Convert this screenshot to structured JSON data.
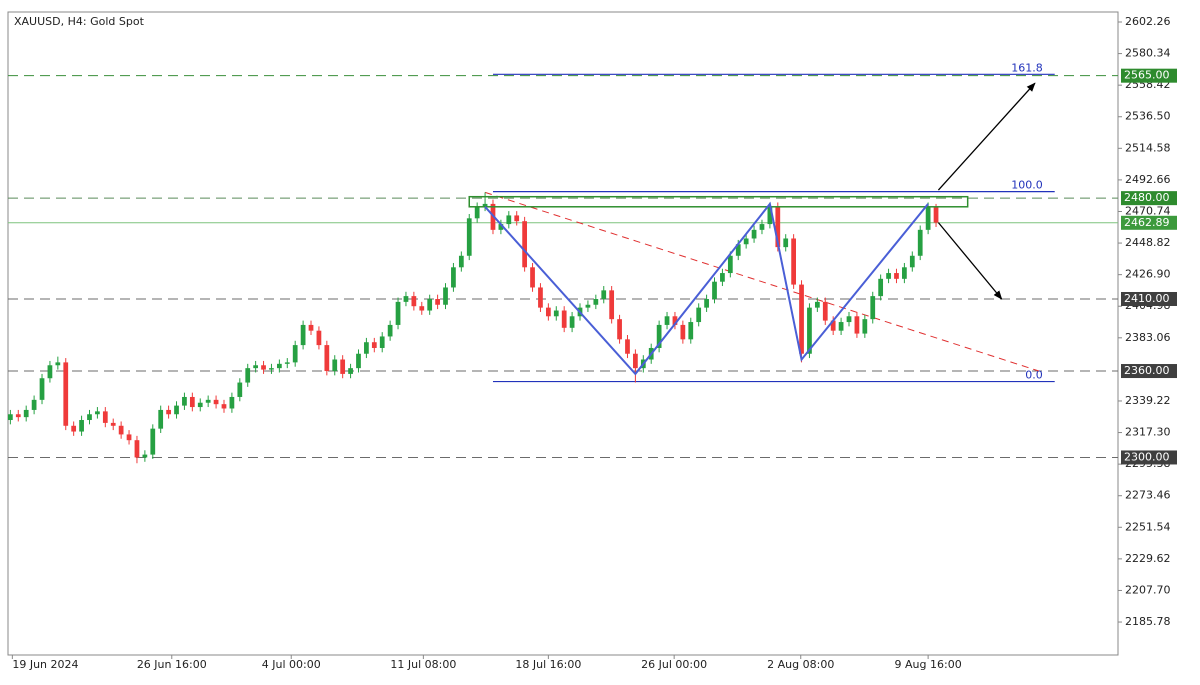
{
  "chart_data": {
    "type": "candlestick",
    "title": "XAUUSD, H4:  Gold Spot",
    "up_color": "#26a042",
    "down_color": "#ef3a3a",
    "xlim": [
      -0.3,
      140
    ],
    "ylim": [
      2162.9,
      2609.2
    ],
    "xticks": [
      {
        "value": 0.25,
        "label": "19 Jun 2024"
      },
      {
        "value": 20.4,
        "label": "26 Jun 16:00"
      },
      {
        "value": 35.5,
        "label": "4 Jul 00:00"
      },
      {
        "value": 52.2,
        "label": "11 Jul 08:00"
      },
      {
        "value": 68,
        "label": "18 Jul 16:00"
      },
      {
        "value": 83.9,
        "label": "26 Jul 00:00"
      },
      {
        "value": 99.9,
        "label": "2 Aug 08:00"
      },
      {
        "value": 116,
        "label": "9 Aug 16:00"
      }
    ],
    "yticks": [
      2602.26,
      2580.34,
      2558.42,
      {
        "value": 2536.5,
        "label": "2536.50"
      },
      2514.58,
      2492.66,
      2470.74,
      2448.82,
      {
        "value": 2426.9,
        "label": "2426.90"
      },
      2404.98,
      2383.06,
      2339.22,
      {
        "value": 2317.3,
        "label": "2317.30"
      },
      2295.38,
      2273.46,
      2251.54,
      2229.62,
      {
        "value": 2207.7,
        "label": "2207.70"
      },
      2185.78
    ],
    "open": [
      2326,
      2330,
      2328,
      2333,
      2340,
      2355,
      2364,
      2366,
      2322,
      2318,
      2326,
      2330,
      2332,
      2324,
      2322,
      2316,
      2312,
      2300,
      2302,
      2320,
      2333,
      2330,
      2336,
      2342,
      2335,
      2338,
      2340,
      2337,
      2334,
      2342,
      2352,
      2362,
      2364,
      2361,
      2362,
      2365,
      2366,
      2378,
      2392,
      2388,
      2378,
      2360,
      2368,
      2358,
      2362,
      2372,
      2380,
      2376,
      2384,
      2392,
      2408,
      2412,
      2405,
      2402,
      2410,
      2406,
      2418,
      2432,
      2440,
      2466,
      2474,
      2476,
      2458,
      2462,
      2468,
      2464,
      2432,
      2418,
      2404,
      2398,
      2402,
      2390,
      2398,
      2404,
      2406,
      2410,
      2416,
      2396,
      2382,
      2372,
      2362,
      2368,
      2376,
      2392,
      2398,
      2392,
      2382,
      2394,
      2404,
      2410,
      2422,
      2428,
      2440,
      2448,
      2452,
      2458,
      2462,
      2474,
      2446,
      2452,
      2420,
      2372,
      2404,
      2408,
      2395,
      2388,
      2394,
      2398,
      2386,
      2396,
      2412,
      2424,
      2428,
      2424,
      2432,
      2440,
      2458,
      2474
    ],
    "high": [
      2333,
      2333,
      2336,
      2343,
      2358,
      2367,
      2370,
      2369,
      2325,
      2329,
      2333,
      2335,
      2335,
      2327,
      2325,
      2319,
      2315,
      2305,
      2323,
      2336,
      2336,
      2339,
      2345,
      2345,
      2341,
      2343,
      2343,
      2340,
      2345,
      2355,
      2365,
      2367,
      2367,
      2365,
      2368,
      2369,
      2381,
      2395,
      2395,
      2391,
      2381,
      2371,
      2371,
      2365,
      2375,
      2383,
      2383,
      2387,
      2395,
      2411,
      2415,
      2415,
      2408,
      2413,
      2413,
      2421,
      2435,
      2443,
      2469,
      2477,
      2484,
      2479,
      2465,
      2471,
      2471,
      2467,
      2435,
      2421,
      2407,
      2405,
      2405,
      2401,
      2407,
      2409,
      2413,
      2419,
      2419,
      2399,
      2385,
      2375,
      2371,
      2379,
      2395,
      2401,
      2401,
      2395,
      2397,
      2407,
      2413,
      2425,
      2431,
      2443,
      2451,
      2455,
      2461,
      2465,
      2477,
      2477,
      2455,
      2455,
      2423,
      2407,
      2411,
      2411,
      2398,
      2397,
      2401,
      2401,
      2399,
      2415,
      2427,
      2431,
      2431,
      2435,
      2443,
      2461,
      2477,
      2476
    ],
    "low": [
      2323,
      2325,
      2325,
      2330,
      2337,
      2352,
      2361,
      2319,
      2315,
      2315,
      2323,
      2327,
      2321,
      2319,
      2313,
      2309,
      2296,
      2297,
      2299,
      2317,
      2327,
      2327,
      2333,
      2332,
      2332,
      2335,
      2334,
      2331,
      2331,
      2339,
      2349,
      2359,
      2358,
      2358,
      2359,
      2362,
      2363,
      2375,
      2385,
      2375,
      2357,
      2357,
      2355,
      2355,
      2359,
      2369,
      2373,
      2373,
      2381,
      2389,
      2405,
      2402,
      2399,
      2399,
      2403,
      2403,
      2415,
      2429,
      2437,
      2463,
      2471,
      2455,
      2455,
      2459,
      2461,
      2429,
      2415,
      2401,
      2395,
      2395,
      2387,
      2387,
      2395,
      2401,
      2403,
      2407,
      2393,
      2379,
      2369,
      2352,
      2359,
      2365,
      2373,
      2389,
      2389,
      2379,
      2379,
      2391,
      2401,
      2407,
      2419,
      2425,
      2437,
      2445,
      2449,
      2455,
      2459,
      2443,
      2443,
      2417,
      2366,
      2369,
      2401,
      2392,
      2385,
      2385,
      2391,
      2383,
      2383,
      2393,
      2409,
      2421,
      2421,
      2421,
      2429,
      2437,
      2455,
      2460
    ],
    "close": [
      2330,
      2328,
      2333,
      2340,
      2355,
      2364,
      2366,
      2322,
      2318,
      2326,
      2330,
      2332,
      2324,
      2322,
      2316,
      2312,
      2300,
      2302,
      2320,
      2333,
      2330,
      2336,
      2342,
      2335,
      2338,
      2340,
      2337,
      2334,
      2342,
      2352,
      2362,
      2364,
      2361,
      2362,
      2365,
      2366,
      2378,
      2392,
      2388,
      2378,
      2360,
      2368,
      2358,
      2362,
      2372,
      2380,
      2376,
      2384,
      2392,
      2408,
      2412,
      2405,
      2402,
      2410,
      2406,
      2418,
      2432,
      2440,
      2466,
      2474,
      2476,
      2458,
      2462,
      2468,
      2464,
      2432,
      2418,
      2404,
      2398,
      2402,
      2390,
      2398,
      2404,
      2406,
      2410,
      2416,
      2396,
      2382,
      2372,
      2362,
      2368,
      2376,
      2392,
      2398,
      2392,
      2382,
      2394,
      2404,
      2410,
      2422,
      2428,
      2440,
      2448,
      2452,
      2458,
      2462,
      2474,
      2446,
      2452,
      2420,
      2372,
      2404,
      2408,
      2395,
      2388,
      2394,
      2398,
      2386,
      2396,
      2412,
      2424,
      2428,
      2424,
      2432,
      2440,
      2458,
      2474,
      2463
    ],
    "levels": [
      {
        "value": 2565,
        "label": "2565.00",
        "color": "#3a8f3a",
        "label_color": "#2e8b2e",
        "dashed": true
      },
      {
        "value": 2480,
        "label": "2480.00",
        "color": "#5a8a5a",
        "label_color": "#2e8b2e",
        "dashed": true
      },
      {
        "value": 2462.89,
        "label": "2462.89",
        "color": "#7fc47f",
        "label_color": "#3c9a3c",
        "dashed": false
      },
      {
        "value": 2410,
        "label": "2410.00",
        "color": "#6b6b6b",
        "label_color": "#3f3f3f",
        "dashed": true
      },
      {
        "value": 2360,
        "label": "2360.00",
        "color": "#6b6b6b",
        "label_color": "#3f3f3f",
        "dashed": true
      },
      {
        "value": 2300,
        "label": "2300.00",
        "color": "#6b6b6b",
        "label_color": "#3f3f3f",
        "dashed": true
      }
    ],
    "fib": {
      "color": "#2233bb",
      "x": [
        61,
        132
      ],
      "low": 2352.7,
      "high": 2484.5,
      "levels": [
        {
          "value": 0,
          "label": "0.0"
        },
        {
          "value": 100,
          "label": "100.0"
        },
        161.8
      ]
    },
    "pattern": {
      "color": "#4a5fd6",
      "x": [
        60,
        79,
        96,
        100,
        116
      ],
      "y": [
        2474,
        2358,
        2476,
        2368,
        2476
      ]
    },
    "trend": {
      "color": "#e03030",
      "x": [
        60,
        130
      ],
      "y": [
        2484,
        2360
      ]
    },
    "zone": {
      "color": "#2f8f2f",
      "x": [
        58,
        121
      ],
      "y": [
        2474,
        2481
      ]
    },
    "arrows": [
      {
        "x": [
          117.3,
          129.5
        ],
        "y": [
          2485.6,
          2559.8
        ]
      },
      {
        "x": [
          117.3,
          125.3
        ],
        "y": [
          2463,
          2410
        ]
      }
    ]
  }
}
